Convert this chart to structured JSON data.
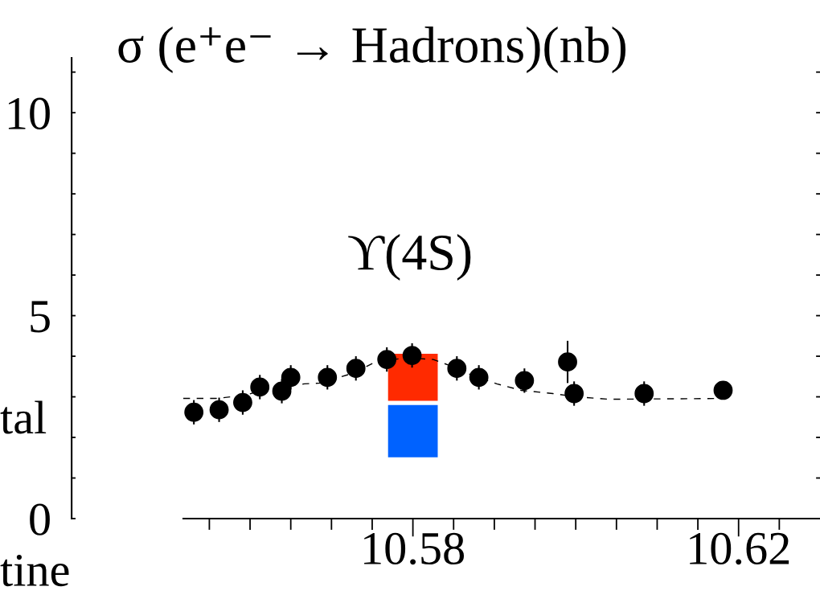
{
  "chart_data": {
    "type": "scatter",
    "title": "σ (e⁺e⁻ → Hadrons)(nb)",
    "annotations": [
      "ϒ(4S)",
      "tal",
      "tine"
    ],
    "xlim": [
      10.5518,
      10.63
    ],
    "ylim": [
      0,
      11.35
    ],
    "xticks": [
      {
        "value": 10.555,
        "label": null
      },
      {
        "value": 10.56,
        "label": null
      },
      {
        "value": 10.565,
        "label": null
      },
      {
        "value": 10.57,
        "label": null
      },
      {
        "value": 10.575,
        "label": null
      },
      10.58,
      {
        "value": 10.585,
        "label": null
      },
      {
        "value": 10.59,
        "label": null
      },
      {
        "value": 10.595,
        "label": null
      },
      {
        "value": 10.6,
        "label": null
      },
      {
        "value": 10.605,
        "label": null
      },
      {
        "value": 10.61,
        "label": null
      },
      {
        "value": 10.615,
        "label": null
      },
      10.62,
      {
        "value": 10.625,
        "label": null
      }
    ],
    "yticks": [
      0,
      {
        "value": 1,
        "label": null
      },
      {
        "value": 2,
        "label": null
      },
      {
        "value": 3,
        "label": null
      },
      {
        "value": 4,
        "label": null
      },
      5,
      {
        "value": 6,
        "label": null
      },
      {
        "value": 7,
        "label": null
      },
      {
        "value": 8,
        "label": null
      },
      {
        "value": 9,
        "label": null
      },
      10,
      {
        "value": 11,
        "label": null
      }
    ],
    "grid": false,
    "legend": false,
    "series": [
      {
        "type": "bar",
        "color": "#0062ff",
        "x": [
          10.58
        ],
        "base": [
          1.51
        ],
        "values": [
          1.29
        ]
      },
      {
        "type": "bar",
        "color": "#ff2a00",
        "x": [
          10.58
        ],
        "base": [
          2.9
        ],
        "values": [
          1.16
        ]
      },
      {
        "type": "line",
        "color": "#000000",
        "line_style": "dashed",
        "marker": "none",
        "x": [
          10.5518,
          10.5559,
          10.5594,
          10.5618,
          10.5633,
          10.5667,
          10.5687,
          10.5726,
          10.5756,
          10.5795,
          10.5825,
          10.5844,
          10.5874,
          10.5903,
          10.5933,
          10.5972,
          10.6001,
          10.6041,
          10.6181
        ],
        "values": [
          2.96,
          2.96,
          3.04,
          3.18,
          3.24,
          3.32,
          3.34,
          3.58,
          3.88,
          3.96,
          3.92,
          3.78,
          3.52,
          3.32,
          3.16,
          3.08,
          3.0,
          2.94,
          2.96
        ]
      },
      {
        "color": "#000000",
        "marker": "circle",
        "x": [
          10.5531,
          10.5562,
          10.5591,
          10.5612,
          10.5639,
          10.565,
          10.5695,
          10.573,
          10.5768,
          10.5799,
          10.5854,
          10.5881,
          10.5937,
          10.599,
          10.5998,
          10.6084,
          10.6181
        ],
        "values": [
          2.62,
          2.68,
          2.86,
          3.24,
          3.14,
          3.48,
          3.48,
          3.7,
          3.92,
          4.02,
          3.7,
          3.48,
          3.4,
          3.86,
          3.08,
          3.08,
          3.16
        ],
        "errors": [
          0.3,
          0.3,
          0.3,
          0.3,
          0.3,
          0.3,
          0.3,
          0.3,
          0.3,
          0.3,
          0.3,
          0.3,
          0.3,
          0.52,
          0.3,
          0.3,
          null
        ]
      }
    ]
  }
}
